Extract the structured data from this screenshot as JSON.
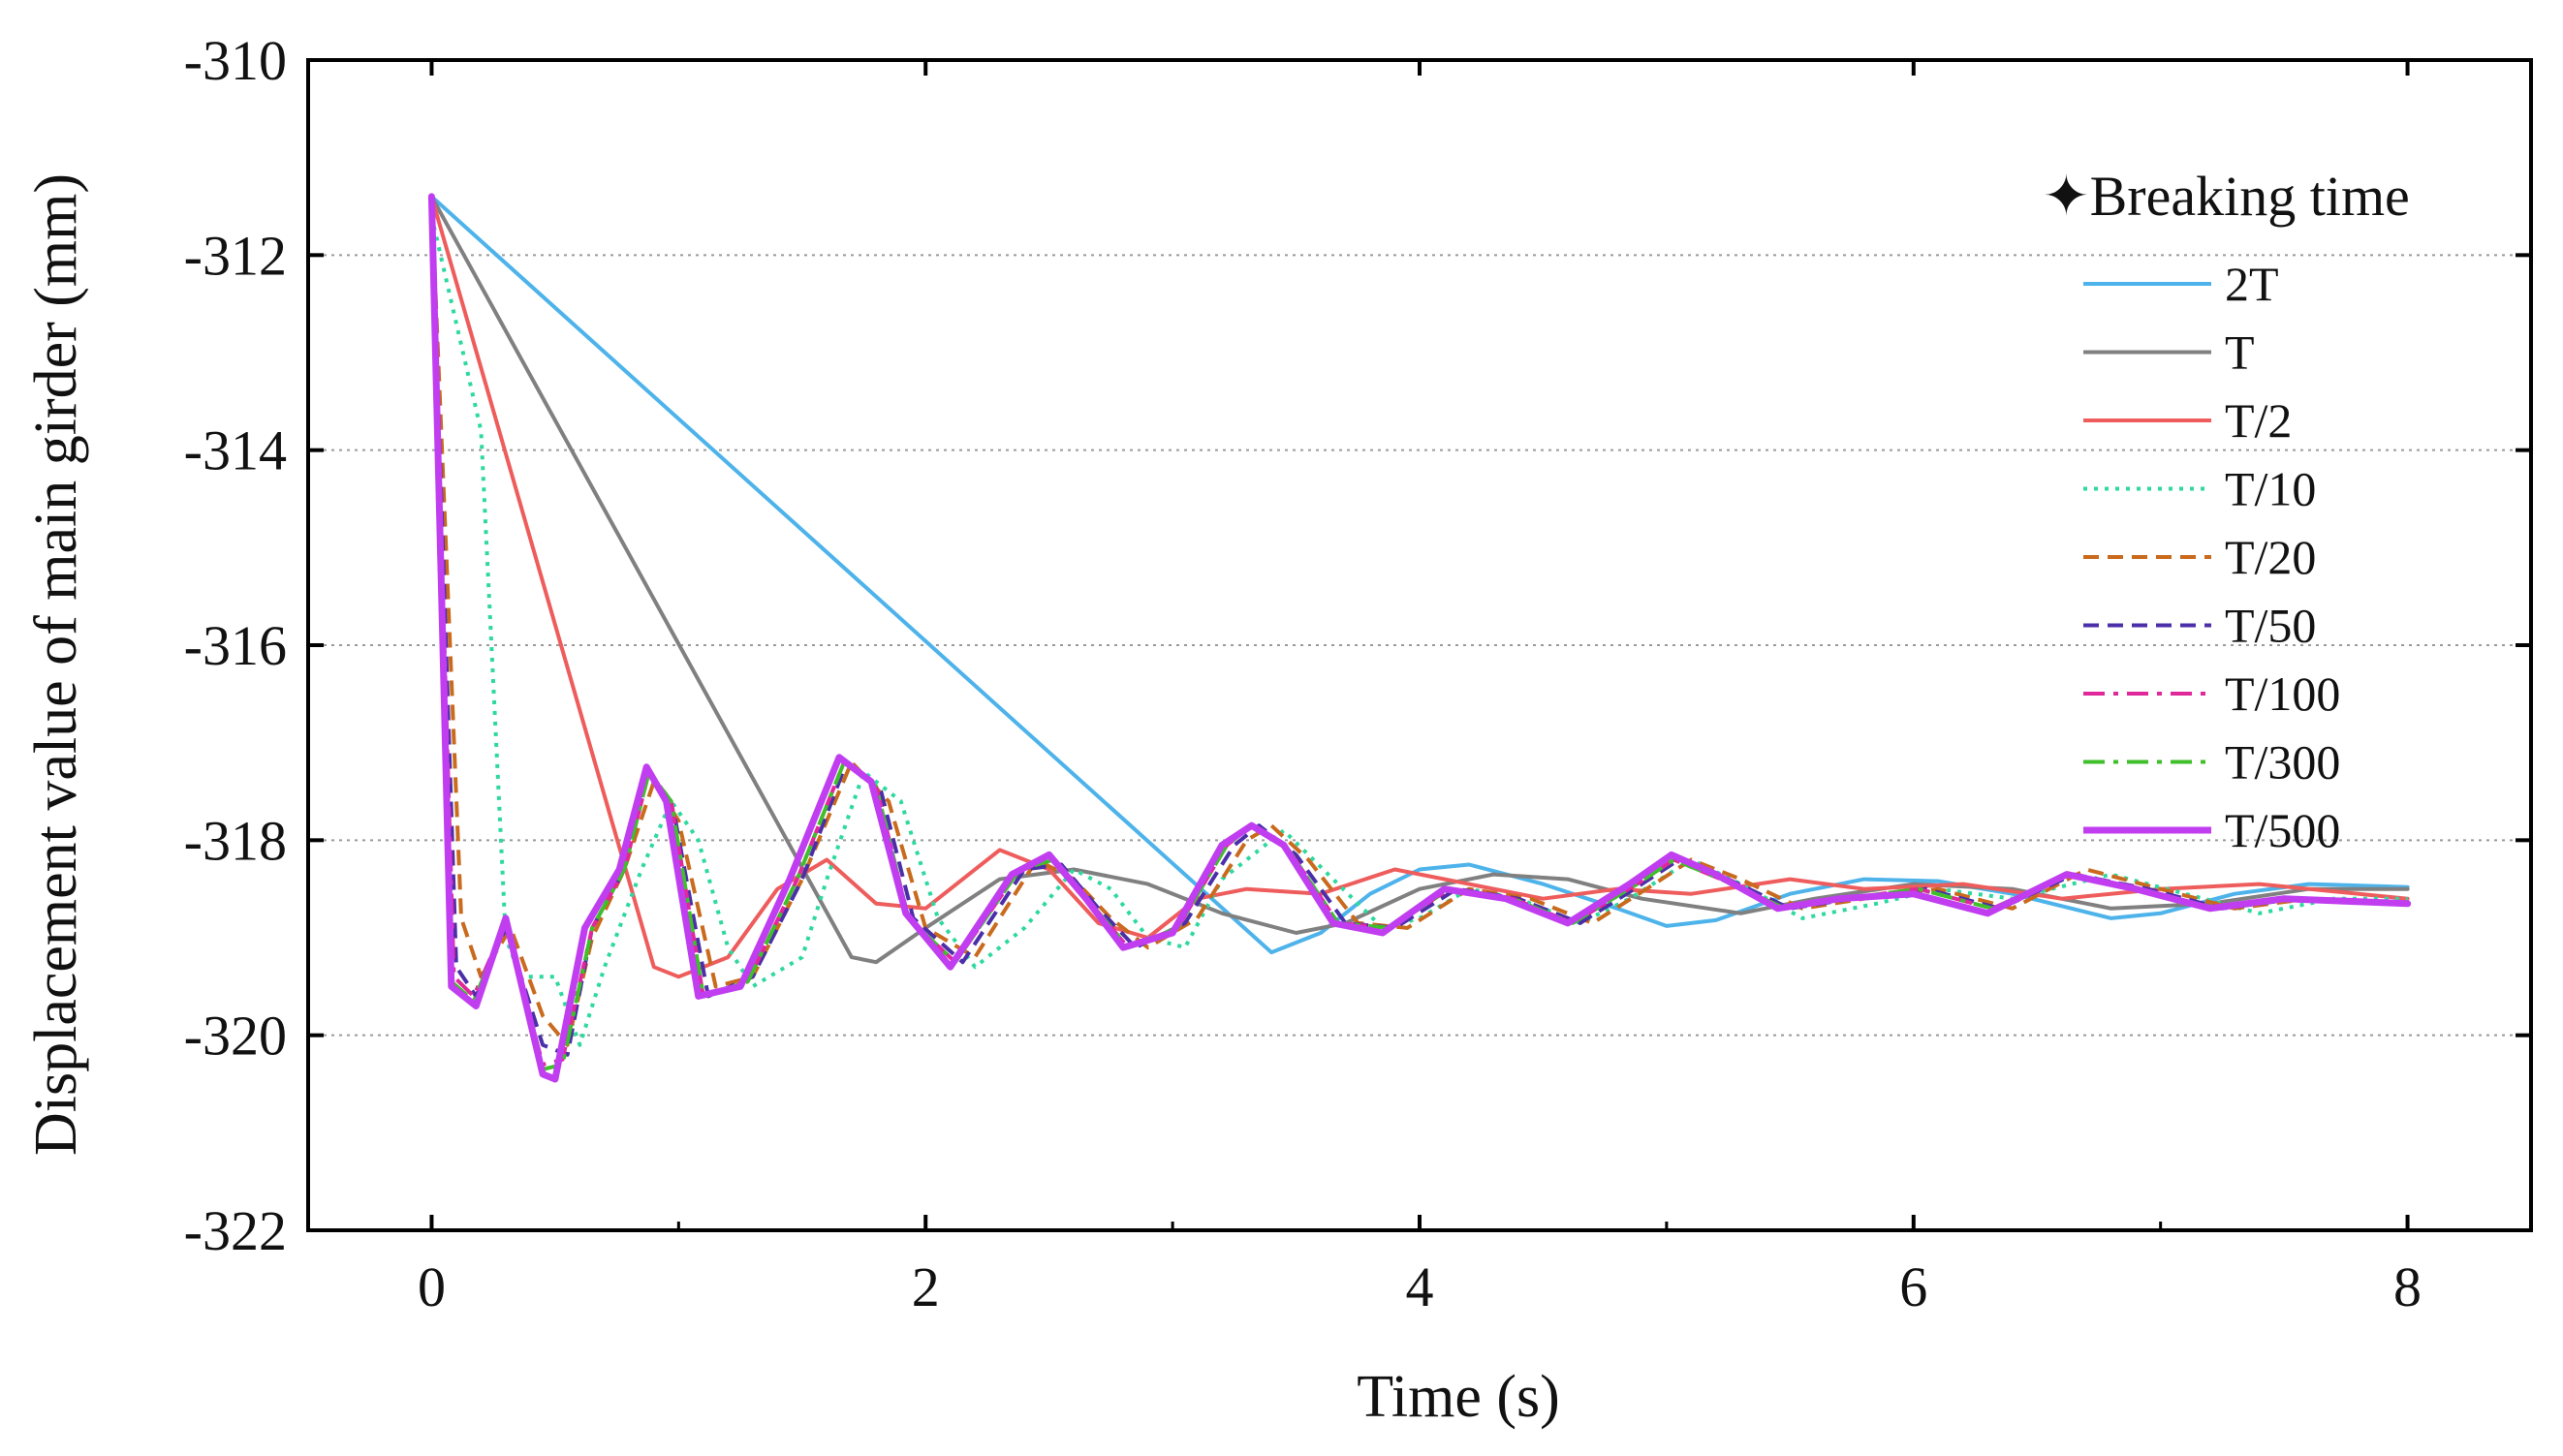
{
  "chart_data": {
    "type": "line",
    "title": "",
    "xlabel": "Time (s)",
    "ylabel": "Displacement value of main girder (mm)",
    "xlim": [
      -0.5,
      8.5
    ],
    "ylim": [
      -322,
      -310
    ],
    "xticks": [
      0,
      2,
      4,
      6,
      8
    ],
    "yticks": [
      -310,
      -312,
      -314,
      -316,
      -318,
      -320,
      -322
    ],
    "xtick_labels": [
      "0",
      "2",
      "4",
      "6",
      "8"
    ],
    "ytick_labels": [
      "-310",
      "-312",
      "-314",
      "-316",
      "-318",
      "-320",
      "-322"
    ],
    "grid": "horizontal-dotted",
    "legend_title": "Breaking time",
    "legend_symbol": "✦",
    "legend_position": "top-right",
    "series": [
      {
        "name": "2T",
        "color": "#4db3ea",
        "dash": "solid",
        "width": 4,
        "x": [
          0,
          3.4,
          3.6,
          3.8,
          4.0,
          4.2,
          4.5,
          4.8,
          5.0,
          5.2,
          5.5,
          5.8,
          6.1,
          6.4,
          6.8,
          7.0,
          7.3,
          7.6,
          8.0
        ],
        "y": [
          -311.4,
          -319.15,
          -318.95,
          -318.55,
          -318.3,
          -318.25,
          -318.45,
          -318.7,
          -318.88,
          -318.82,
          -318.55,
          -318.4,
          -318.42,
          -318.55,
          -318.8,
          -318.75,
          -318.55,
          -318.45,
          -318.48
        ]
      },
      {
        "name": "T",
        "color": "#808080",
        "dash": "solid",
        "width": 4,
        "x": [
          0,
          1.7,
          1.8,
          2.0,
          2.3,
          2.6,
          2.9,
          3.2,
          3.5,
          3.7,
          4.0,
          4.3,
          4.6,
          4.9,
          5.3,
          5.6,
          6.0,
          6.4,
          6.8,
          7.2,
          7.6,
          8.0
        ],
        "y": [
          -311.4,
          -319.2,
          -319.25,
          -318.9,
          -318.4,
          -318.3,
          -318.45,
          -318.75,
          -318.95,
          -318.85,
          -318.5,
          -318.35,
          -318.4,
          -318.6,
          -318.75,
          -318.6,
          -318.45,
          -318.5,
          -318.7,
          -318.65,
          -318.5,
          -318.5
        ]
      },
      {
        "name": "T/2",
        "color": "#ee5c5c",
        "dash": "solid",
        "width": 4,
        "x": [
          0,
          0.9,
          1.0,
          1.2,
          1.4,
          1.6,
          1.8,
          2.0,
          2.3,
          2.5,
          2.7,
          2.9,
          3.1,
          3.3,
          3.6,
          3.9,
          4.2,
          4.5,
          4.8,
          5.1,
          5.5,
          5.8,
          6.2,
          6.6,
          7.0,
          7.4,
          8.0
        ],
        "y": [
          -311.4,
          -319.3,
          -319.4,
          -319.2,
          -318.5,
          -318.2,
          -318.65,
          -318.7,
          -318.1,
          -318.3,
          -318.85,
          -319.0,
          -318.6,
          -318.5,
          -318.55,
          -318.3,
          -318.45,
          -318.6,
          -318.5,
          -318.55,
          -318.4,
          -318.5,
          -318.45,
          -318.6,
          -318.5,
          -318.45,
          -318.6
        ]
      },
      {
        "name": "T/10",
        "color": "#2ed8a0",
        "dash": "dotted",
        "width": 4,
        "x": [
          0,
          0.2,
          0.3,
          0.36,
          0.5,
          0.6,
          0.7,
          0.85,
          0.97,
          1.08,
          1.2,
          1.3,
          1.5,
          1.6,
          1.75,
          1.9,
          2.05,
          2.2,
          2.4,
          2.6,
          2.75,
          2.9,
          3.05,
          3.2,
          3.45,
          3.65,
          3.85,
          4.0,
          4.2,
          4.4,
          4.65,
          4.85,
          5.1,
          5.3,
          5.55,
          5.85,
          6.1,
          6.4,
          6.8,
          7.1,
          7.4,
          7.7,
          8.0
        ],
        "y": [
          -311.6,
          -313.8,
          -319.0,
          -319.4,
          -319.4,
          -320.1,
          -319.3,
          -318.3,
          -317.6,
          -318.0,
          -319.1,
          -319.5,
          -319.2,
          -318.4,
          -317.3,
          -317.6,
          -318.8,
          -319.3,
          -318.9,
          -318.3,
          -318.5,
          -319.0,
          -319.1,
          -318.4,
          -317.9,
          -318.4,
          -318.9,
          -318.8,
          -318.5,
          -318.6,
          -318.85,
          -318.6,
          -318.2,
          -318.45,
          -318.8,
          -318.65,
          -318.5,
          -318.6,
          -318.35,
          -318.55,
          -318.75,
          -318.6,
          -318.6
        ]
      },
      {
        "name": "T/20",
        "color": "#c96a1d",
        "dash": "dashed",
        "width": 4,
        "x": [
          0,
          0.12,
          0.2,
          0.32,
          0.45,
          0.55,
          0.65,
          0.78,
          0.9,
          1.0,
          1.15,
          1.3,
          1.5,
          1.7,
          1.85,
          2.0,
          2.2,
          2.45,
          2.6,
          2.75,
          2.9,
          3.1,
          3.3,
          3.4,
          3.55,
          3.75,
          3.95,
          4.2,
          4.45,
          4.7,
          4.95,
          5.1,
          5.3,
          5.55,
          5.8,
          6.1,
          6.4,
          6.7,
          7.0,
          7.3,
          7.6,
          8.0
        ],
        "y": [
          -311.4,
          -318.8,
          -319.4,
          -318.9,
          -319.8,
          -320.1,
          -319.0,
          -318.3,
          -317.4,
          -317.8,
          -319.5,
          -319.4,
          -318.4,
          -317.2,
          -317.6,
          -318.9,
          -319.2,
          -318.2,
          -318.4,
          -318.8,
          -319.1,
          -318.8,
          -318.0,
          -317.85,
          -318.2,
          -318.85,
          -318.9,
          -318.5,
          -318.6,
          -318.85,
          -318.45,
          -318.2,
          -318.4,
          -318.7,
          -318.6,
          -318.5,
          -318.7,
          -318.3,
          -318.5,
          -318.7,
          -318.6,
          -318.65
        ]
      },
      {
        "name": "T/50",
        "color": "#4b2fa8",
        "dash": "dashed",
        "width": 4,
        "x": [
          0,
          0.1,
          0.18,
          0.3,
          0.45,
          0.55,
          0.65,
          0.78,
          0.88,
          0.98,
          1.12,
          1.3,
          1.5,
          1.68,
          1.82,
          1.95,
          2.15,
          2.4,
          2.55,
          2.7,
          2.85,
          3.05,
          3.25,
          3.35,
          3.5,
          3.7,
          3.9,
          4.15,
          4.4,
          4.65,
          4.9,
          5.05,
          5.25,
          5.5,
          5.75,
          6.05,
          6.35,
          6.65,
          6.95,
          7.25,
          7.55,
          8.0
        ],
        "y": [
          -311.4,
          -319.3,
          -319.6,
          -318.9,
          -320.1,
          -320.2,
          -318.9,
          -318.3,
          -317.3,
          -317.7,
          -319.6,
          -319.4,
          -318.4,
          -317.2,
          -317.5,
          -318.8,
          -319.25,
          -318.3,
          -318.25,
          -318.7,
          -319.1,
          -318.85,
          -318.05,
          -317.85,
          -318.15,
          -318.85,
          -318.9,
          -318.5,
          -318.6,
          -318.85,
          -318.45,
          -318.2,
          -318.4,
          -318.7,
          -318.6,
          -318.5,
          -318.7,
          -318.35,
          -318.5,
          -318.7,
          -318.6,
          -318.65
        ]
      },
      {
        "name": "T/100",
        "color": "#e0289a",
        "dash": "dashdot",
        "width": 4,
        "x": [
          0,
          0.09,
          0.17,
          0.3,
          0.45,
          0.53,
          0.65,
          0.78,
          0.88,
          0.97,
          1.1,
          1.28,
          1.48,
          1.67,
          1.8,
          1.93,
          2.12,
          2.38,
          2.52,
          2.67,
          2.82,
          3.02,
          3.22,
          3.32,
          3.47,
          3.67,
          3.88,
          4.12,
          4.38,
          4.62,
          4.88,
          5.03,
          5.22,
          5.48,
          5.72,
          6.02,
          6.32,
          6.62,
          6.92,
          7.22,
          7.52,
          8.0
        ],
        "y": [
          -311.4,
          -319.4,
          -319.6,
          -318.85,
          -320.3,
          -320.25,
          -318.9,
          -318.3,
          -317.3,
          -317.6,
          -319.6,
          -319.45,
          -318.4,
          -317.2,
          -317.45,
          -318.8,
          -319.25,
          -318.3,
          -318.2,
          -318.65,
          -319.1,
          -318.9,
          -318.05,
          -317.85,
          -318.1,
          -318.85,
          -318.9,
          -318.5,
          -318.6,
          -318.85,
          -318.45,
          -318.2,
          -318.4,
          -318.7,
          -318.6,
          -318.5,
          -318.7,
          -318.35,
          -318.5,
          -318.7,
          -318.6,
          -318.65
        ]
      },
      {
        "name": "T/300",
        "color": "#3fbf2a",
        "dash": "dashdot",
        "width": 4,
        "x": [
          0,
          0.08,
          0.17,
          0.3,
          0.45,
          0.53,
          0.65,
          0.78,
          0.88,
          0.97,
          1.1,
          1.28,
          1.48,
          1.67,
          1.8,
          1.93,
          2.12,
          2.38,
          2.52,
          2.67,
          2.82,
          3.02,
          3.22,
          3.32,
          3.47,
          3.67,
          3.88,
          4.12,
          4.38,
          4.62,
          4.88,
          5.03,
          5.22,
          5.48,
          5.72,
          6.02,
          6.32,
          6.62,
          6.92,
          7.22,
          7.52,
          8.0
        ],
        "y": [
          -311.4,
          -319.45,
          -319.65,
          -318.85,
          -320.35,
          -320.3,
          -318.9,
          -318.3,
          -317.3,
          -317.6,
          -319.6,
          -319.45,
          -318.4,
          -317.2,
          -317.45,
          -318.8,
          -319.25,
          -318.3,
          -318.2,
          -318.65,
          -319.1,
          -318.9,
          -318.05,
          -317.85,
          -318.1,
          -318.85,
          -318.9,
          -318.5,
          -318.6,
          -318.85,
          -318.45,
          -318.2,
          -318.4,
          -318.7,
          -318.6,
          -318.5,
          -318.7,
          -318.35,
          -318.5,
          -318.7,
          -318.6,
          -318.65
        ]
      },
      {
        "name": "T/500",
        "color": "#c03ef0",
        "dash": "solid",
        "width": 7,
        "x": [
          0,
          0.08,
          0.18,
          0.3,
          0.45,
          0.5,
          0.62,
          0.76,
          0.87,
          0.95,
          1.08,
          1.25,
          1.45,
          1.65,
          1.78,
          1.92,
          2.1,
          2.35,
          2.5,
          2.65,
          2.8,
          3.0,
          3.2,
          3.32,
          3.45,
          3.65,
          3.85,
          4.1,
          4.35,
          4.6,
          4.85,
          5.02,
          5.2,
          5.45,
          5.7,
          6.0,
          6.3,
          6.62,
          6.9,
          7.2,
          7.5,
          8.0
        ],
        "y": [
          -311.4,
          -319.5,
          -319.7,
          -318.8,
          -320.4,
          -320.45,
          -318.9,
          -318.3,
          -317.25,
          -317.6,
          -319.6,
          -319.5,
          -318.4,
          -317.15,
          -317.4,
          -318.75,
          -319.3,
          -318.35,
          -318.15,
          -318.6,
          -319.1,
          -318.95,
          -318.05,
          -317.85,
          -318.05,
          -318.85,
          -318.95,
          -318.5,
          -318.6,
          -318.85,
          -318.45,
          -318.15,
          -318.35,
          -318.7,
          -318.6,
          -318.55,
          -318.75,
          -318.35,
          -318.5,
          -318.7,
          -318.6,
          -318.65
        ]
      }
    ]
  }
}
